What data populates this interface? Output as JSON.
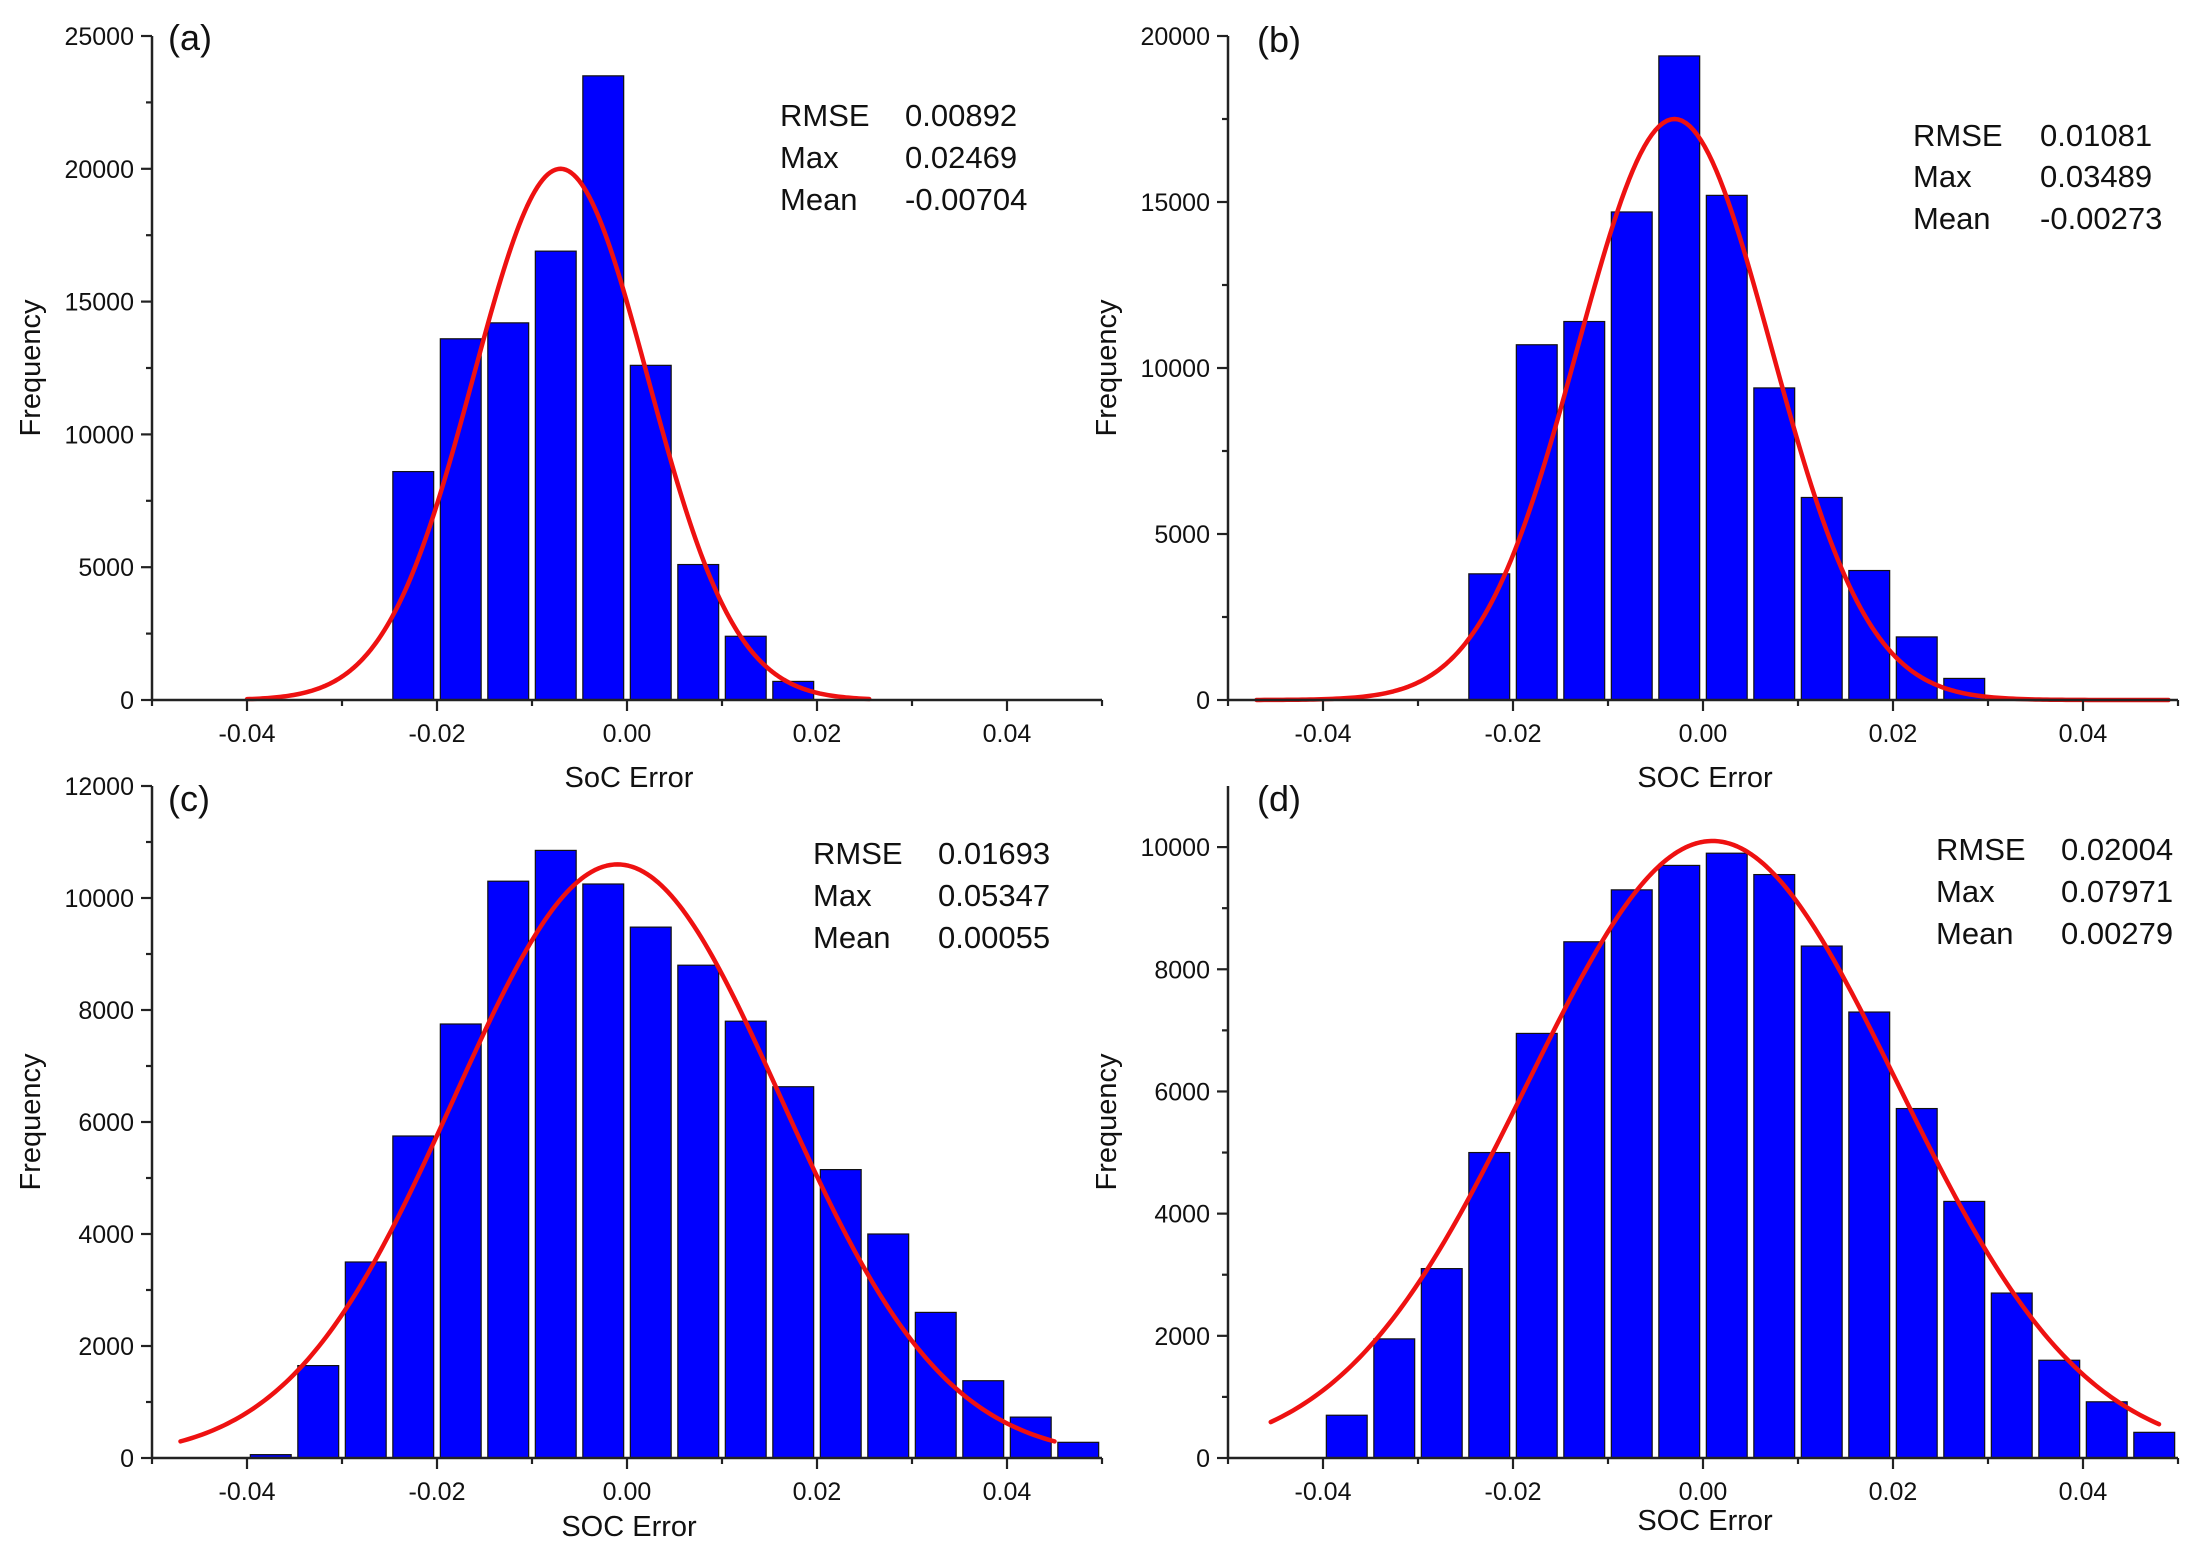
{
  "colors": {
    "bar": "#0000ff",
    "fit": "#ee1111",
    "axis": "#222222"
  },
  "chart_data": [
    {
      "type": "bar",
      "panel_label": "(a)",
      "xlabel": "SoC Error",
      "ylabel": "Frequency",
      "xlim": [
        -0.05,
        0.05
      ],
      "ylim": [
        0,
        25000
      ],
      "xticks": [
        -0.04,
        -0.02,
        0.0,
        0.02,
        0.04
      ],
      "xtick_labels": [
        "-0.04",
        "-0.02",
        "0.00",
        "0.02",
        "0.04"
      ],
      "yticks": [
        0,
        5000,
        10000,
        15000,
        20000,
        25000
      ],
      "ytick_labels": [
        "0",
        "5000",
        "10000",
        "15000",
        "20000",
        "25000"
      ],
      "bin_width": 0.005,
      "bins": [
        {
          "x": -0.0225,
          "value": 8600
        },
        {
          "x": -0.0175,
          "value": 13600
        },
        {
          "x": -0.0125,
          "value": 14200
        },
        {
          "x": -0.0075,
          "value": 16900
        },
        {
          "x": -0.0025,
          "value": 23500
        },
        {
          "x": 0.0025,
          "value": 12600
        },
        {
          "x": 0.0075,
          "value": 5100
        },
        {
          "x": 0.0125,
          "value": 2400
        },
        {
          "x": 0.0175,
          "value": 700
        }
      ],
      "fit": {
        "type": "gaussian",
        "center": -0.007,
        "sigma": 0.0092,
        "peak": 20000,
        "x_range": [
          -0.04,
          0.0255
        ]
      },
      "stats": [
        {
          "label": "RMSE",
          "value": "0.00892"
        },
        {
          "label": "Max",
          "value": "0.02469"
        },
        {
          "label": "Mean",
          "value": "-0.00704"
        }
      ]
    },
    {
      "type": "bar",
      "panel_label": "(b)",
      "xlabel": "SOC Error",
      "ylabel": "Frequency",
      "xlim": [
        -0.05,
        0.05
      ],
      "ylim": [
        0,
        20000
      ],
      "xticks": [
        -0.04,
        -0.02,
        0.0,
        0.02,
        0.04
      ],
      "xtick_labels": [
        "-0.04",
        "-0.02",
        "0.00",
        "0.02",
        "0.04"
      ],
      "yticks": [
        0,
        5000,
        10000,
        15000,
        20000
      ],
      "ytick_labels": [
        "0",
        "5000",
        "10000",
        "15000",
        "20000"
      ],
      "bin_width": 0.005,
      "bins": [
        {
          "x": -0.0225,
          "value": 3800
        },
        {
          "x": -0.0175,
          "value": 10700
        },
        {
          "x": -0.0125,
          "value": 11400
        },
        {
          "x": -0.0075,
          "value": 14700
        },
        {
          "x": -0.0025,
          "value": 19400
        },
        {
          "x": 0.0025,
          "value": 15200
        },
        {
          "x": 0.0075,
          "value": 9400
        },
        {
          "x": 0.0125,
          "value": 6100
        },
        {
          "x": 0.0175,
          "value": 3900
        },
        {
          "x": 0.0225,
          "value": 1900
        },
        {
          "x": 0.0275,
          "value": 650
        }
      ],
      "fit": {
        "type": "gaussian",
        "center": -0.003,
        "sigma": 0.0102,
        "peak": 17500,
        "x_range": [
          -0.047,
          0.049
        ]
      },
      "stats": [
        {
          "label": "RMSE",
          "value": "0.01081"
        },
        {
          "label": "Max",
          "value": "0.03489"
        },
        {
          "label": "Mean",
          "value": "-0.00273"
        }
      ]
    },
    {
      "type": "bar",
      "panel_label": "(c)",
      "xlabel": "SOC Error",
      "ylabel": "Frequency",
      "xlim": [
        -0.05,
        0.05
      ],
      "ylim": [
        0,
        12000
      ],
      "xticks": [
        -0.04,
        -0.02,
        0.0,
        0.02,
        0.04
      ],
      "xtick_labels": [
        "-0.04",
        "-0.02",
        "0.00",
        "0.02",
        "0.04"
      ],
      "yticks": [
        0,
        2000,
        4000,
        6000,
        8000,
        10000,
        12000
      ],
      "ytick_labels": [
        "0",
        "2000",
        "4000",
        "6000",
        "8000",
        "10000",
        "12000"
      ],
      "bin_width": 0.005,
      "bins": [
        {
          "x": -0.0375,
          "value": 60
        },
        {
          "x": -0.0325,
          "value": 1650
        },
        {
          "x": -0.0275,
          "value": 3500
        },
        {
          "x": -0.0225,
          "value": 5750
        },
        {
          "x": -0.0175,
          "value": 7750
        },
        {
          "x": -0.0125,
          "value": 10300
        },
        {
          "x": -0.0075,
          "value": 10850
        },
        {
          "x": -0.0025,
          "value": 10250
        },
        {
          "x": 0.0025,
          "value": 9480
        },
        {
          "x": 0.0075,
          "value": 8800
        },
        {
          "x": 0.0125,
          "value": 7800
        },
        {
          "x": 0.0175,
          "value": 6630
        },
        {
          "x": 0.0225,
          "value": 5150
        },
        {
          "x": 0.0275,
          "value": 4000
        },
        {
          "x": 0.0325,
          "value": 2600
        },
        {
          "x": 0.0375,
          "value": 1380
        },
        {
          "x": 0.0425,
          "value": 730
        },
        {
          "x": 0.0475,
          "value": 280
        }
      ],
      "fit": {
        "type": "gaussian",
        "center": -0.001,
        "sigma": 0.0172,
        "peak": 10600,
        "x_range": [
          -0.047,
          0.045
        ]
      },
      "stats": [
        {
          "label": "RMSE",
          "value": "0.01693"
        },
        {
          "label": "Max",
          "value": "0.05347"
        },
        {
          "label": "Mean",
          "value": "0.00055"
        }
      ]
    },
    {
      "type": "bar",
      "panel_label": "(d)",
      "xlabel": "SOC Error",
      "ylabel": "Frequency",
      "xlim": [
        -0.05,
        0.05
      ],
      "ylim": [
        0,
        11000
      ],
      "xticks": [
        -0.04,
        -0.02,
        0.0,
        0.02,
        0.04
      ],
      "xtick_labels": [
        "-0.04",
        "-0.02",
        "0.00",
        "0.02",
        "0.04"
      ],
      "yticks": [
        0,
        2000,
        4000,
        6000,
        8000,
        10000
      ],
      "ytick_labels": [
        "0",
        "2000",
        "4000",
        "6000",
        "8000",
        "10000"
      ],
      "bin_width": 0.005,
      "bins": [
        {
          "x": -0.0375,
          "value": 700
        },
        {
          "x": -0.0325,
          "value": 1950
        },
        {
          "x": -0.0275,
          "value": 3100
        },
        {
          "x": -0.0225,
          "value": 5000
        },
        {
          "x": -0.0175,
          "value": 6950
        },
        {
          "x": -0.0125,
          "value": 8450
        },
        {
          "x": -0.0075,
          "value": 9300
        },
        {
          "x": -0.0025,
          "value": 9700
        },
        {
          "x": 0.0025,
          "value": 9900
        },
        {
          "x": 0.0075,
          "value": 9550
        },
        {
          "x": 0.0125,
          "value": 8380
        },
        {
          "x": 0.0175,
          "value": 7300
        },
        {
          "x": 0.0225,
          "value": 5720
        },
        {
          "x": 0.0275,
          "value": 4200
        },
        {
          "x": 0.0325,
          "value": 2700
        },
        {
          "x": 0.0375,
          "value": 1600
        },
        {
          "x": 0.0425,
          "value": 920
        },
        {
          "x": 0.0475,
          "value": 420
        }
      ],
      "fit": {
        "type": "gaussian",
        "center": 0.001,
        "sigma": 0.0195,
        "peak": 10100,
        "x_range": [
          -0.0455,
          0.048
        ]
      },
      "stats": [
        {
          "label": "RMSE",
          "value": "0.02004"
        },
        {
          "label": "Max",
          "value": "0.07971"
        },
        {
          "label": "Mean",
          "value": "0.00279"
        }
      ]
    }
  ]
}
